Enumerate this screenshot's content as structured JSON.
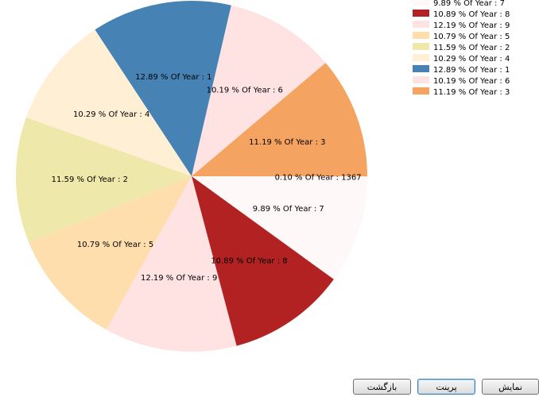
{
  "chart_data": {
    "type": "pie",
    "slices": [
      {
        "label": "0.10 % Of Year : 1367",
        "value": 0.1,
        "color": "#fff0f0"
      },
      {
        "label": "9.89 % Of Year : 7",
        "value": 9.89,
        "color": "#fff8f8"
      },
      {
        "label": "10.89 % Of Year : 8",
        "value": 10.89,
        "color": "#b22222"
      },
      {
        "label": "12.19 % Of Year : 9",
        "value": 12.19,
        "color": "#ffe2e2"
      },
      {
        "label": "10.79 % Of Year : 5",
        "value": 10.79,
        "color": "#ffdead"
      },
      {
        "label": "11.59 % Of Year : 2",
        "value": 11.59,
        "color": "#eee8aa"
      },
      {
        "label": "10.29 % Of Year : 4",
        "value": 10.29,
        "color": "#ffefd5"
      },
      {
        "label": "12.89 % Of Year : 1",
        "value": 12.89,
        "color": "#4682b4"
      },
      {
        "label": "10.19 % Of Year : 6",
        "value": 10.19,
        "color": "#ffe2e2"
      },
      {
        "label": "11.19 % Of Year : 3",
        "value": 11.19,
        "color": "#f4a460"
      }
    ],
    "legend_position": "top-right"
  },
  "buttons": {
    "show": "نمایش",
    "print": "پرینت",
    "back": "بازگشت"
  }
}
